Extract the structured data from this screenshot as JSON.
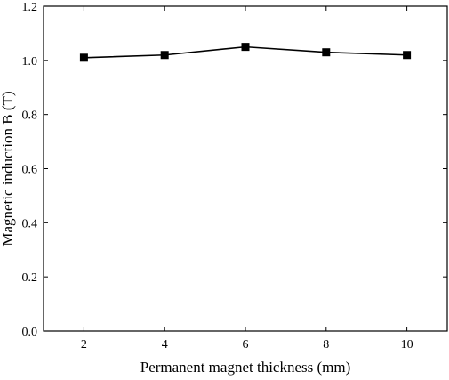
{
  "chart_data": {
    "type": "line",
    "title": "",
    "xlabel": "Permanent magnet thickness (mm)",
    "ylabel": "Magnetic induction B (T)",
    "xlim": [
      1,
      11
    ],
    "ylim": [
      0.0,
      1.2
    ],
    "xticks": [
      2,
      4,
      6,
      8,
      10
    ],
    "yticks": [
      "0.0",
      "0.2",
      "0.4",
      "0.6",
      "0.8",
      "1.0",
      "1.2"
    ],
    "grid": false,
    "marker": "square",
    "colors": {
      "line": "#000000",
      "marker": "#000000",
      "axes": "#000000"
    },
    "series": [
      {
        "x": [
          2,
          4,
          6,
          8,
          10
        ],
        "y": [
          1.01,
          1.02,
          1.05,
          1.03,
          1.02
        ]
      }
    ]
  }
}
